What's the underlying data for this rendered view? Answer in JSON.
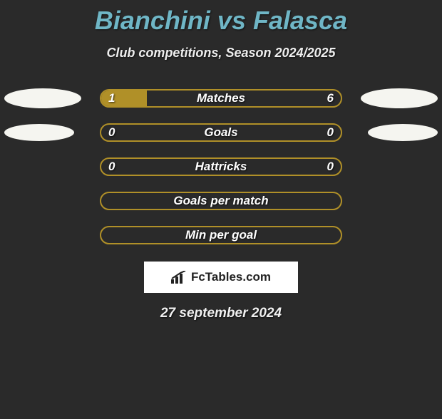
{
  "title": "Bianchini vs Falasca",
  "subtitle": "Club competitions, Season 2024/2025",
  "rows": [
    {
      "label": "Matches",
      "left": "1",
      "right": "6",
      "fill_pct": 19,
      "show_badges": true,
      "badge_small": false
    },
    {
      "label": "Goals",
      "left": "0",
      "right": "0",
      "fill_pct": 0,
      "show_badges": true,
      "badge_small": true
    },
    {
      "label": "Hattricks",
      "left": "0",
      "right": "0",
      "fill_pct": 0,
      "show_badges": false
    },
    {
      "label": "Goals per match",
      "left": "",
      "right": "",
      "fill_pct": 0,
      "show_badges": false
    },
    {
      "label": "Min per goal",
      "left": "",
      "right": "",
      "fill_pct": 0,
      "show_badges": false
    }
  ],
  "logo_text": "FcTables.com",
  "date": "27 september 2024",
  "colors": {
    "title": "#6fb6c6",
    "bar_border": "#b09028",
    "bar_fill": "#b09028",
    "background": "#2a2a2a"
  }
}
